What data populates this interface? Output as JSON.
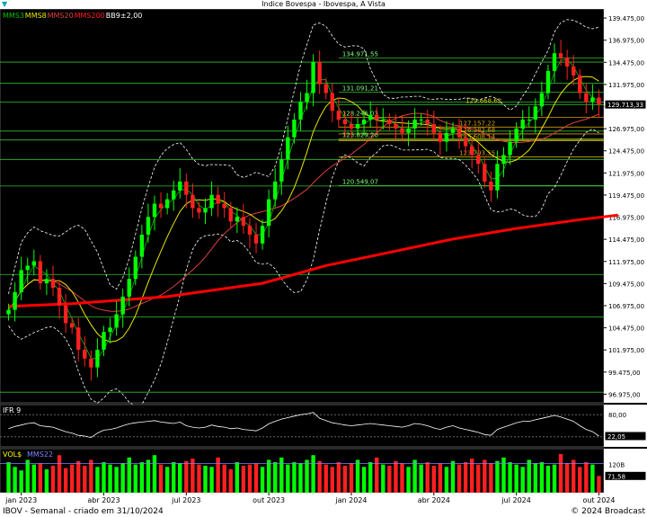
{
  "window": {
    "title": "Indice Bovespa - Ibovespa, A Vista"
  },
  "footer": {
    "left": "IBOV - Semanal - criado em 31/10/2024",
    "right": "© 2024 Broadcast"
  },
  "colors": {
    "up": "#00ff00",
    "down": "#ff2020",
    "mms3": "#00c000",
    "mms8": "#e6e600",
    "mms20": "#e04040",
    "mms200": "#ff0000",
    "bb": "#ffffff",
    "hline": "#30c030",
    "fibo": "#d0a000",
    "grid": "#444444"
  },
  "chart_data": [
    {
      "type": "candlestick",
      "panel": "price",
      "legend": [
        {
          "label": "MMS3",
          "color": "#00c000"
        },
        {
          "label": "MMS8",
          "color": "#e6e600"
        },
        {
          "label": "MMS20",
          "color": "#e04040"
        },
        {
          "label": "MMS200",
          "color": "#ff2020"
        },
        {
          "label": "BB9±2,00",
          "color": "#ffffff"
        }
      ],
      "y_ticks": [
        "139.475,00",
        "136.975,00",
        "134.475,00",
        "131.975,00",
        "129.475,00",
        "126.975,00",
        "124.475,00",
        "121.975,00",
        "119.475,00",
        "116.975,00",
        "114.475,00",
        "111.975,00",
        "109.475,00",
        "106.975,00",
        "104.475,00",
        "101.975,00",
        "99.475,00",
        "96.975,00"
      ],
      "ylim": [
        96000,
        140500
      ],
      "last_value": "129.713,33",
      "x_labels": [
        {
          "label": "jan 2023",
          "index": 2
        },
        {
          "label": "abr 2023",
          "index": 15
        },
        {
          "label": "jul 2023",
          "index": 28
        },
        {
          "label": "out 2023",
          "index": 41
        },
        {
          "label": "jan 2024",
          "index": 54
        },
        {
          "label": "abr 2024",
          "index": 67
        },
        {
          "label": "jul 2024",
          "index": 80
        },
        {
          "label": "out 2024",
          "index": 93
        }
      ],
      "closes": [
        106500,
        108500,
        111000,
        111500,
        112000,
        109500,
        110000,
        109000,
        107000,
        105000,
        104500,
        102000,
        101000,
        100000,
        102000,
        104000,
        104500,
        106000,
        108000,
        110000,
        112500,
        115000,
        117000,
        118500,
        118000,
        119000,
        120000,
        121000,
        119500,
        118000,
        117500,
        118000,
        119500,
        118500,
        118000,
        116500,
        117000,
        116000,
        115000,
        114000,
        116000,
        119000,
        121000,
        123500,
        126000,
        128000,
        130000,
        131000,
        134500,
        132000,
        131000,
        129000,
        128000,
        127500,
        127000,
        127500,
        128000,
        128500,
        128000,
        128000,
        127500,
        127000,
        126500,
        127000,
        128000,
        128000,
        127500,
        126500,
        125500,
        126500,
        127000,
        126000,
        125000,
        124000,
        123000,
        121000,
        120000,
        123000,
        124000,
        125500,
        127000,
        128000,
        128000,
        129500,
        131000,
        133500,
        135500,
        135000,
        134000,
        133000,
        131000,
        130000,
        130500,
        129713
      ],
      "mms200_line": [
        [
          0,
          106900
        ],
        [
          10,
          107200
        ],
        [
          25,
          108000
        ],
        [
          40,
          109500
        ],
        [
          50,
          111500
        ],
        [
          60,
          113000
        ],
        [
          70,
          114500
        ],
        [
          80,
          115700
        ],
        [
          90,
          116700
        ],
        [
          96,
          117200
        ]
      ],
      "levels": [
        {
          "label": "134.971,55",
          "value": 134972
        },
        {
          "label": "131.091,21",
          "value": 131091
        },
        {
          "label": "129.668,62",
          "value": 129669
        },
        {
          "label": "128.246,03",
          "value": 128246
        },
        {
          "label": "127.157,22",
          "value": 127157
        },
        {
          "label": "126.382,68",
          "value": 126383
        },
        {
          "label": "125.608,14",
          "value": 125608
        },
        {
          "label": "125.829,26",
          "value": 125829
        },
        {
          "label": "123.793,55",
          "value": 123794
        },
        {
          "label": "120.549,07",
          "value": 120549
        }
      ]
    },
    {
      "type": "line",
      "panel": "ifr",
      "name": "IFR 9",
      "y_ticks": [
        "80,00"
      ],
      "last_value": "22,05",
      "ylim": [
        0,
        100
      ],
      "values": [
        42,
        48,
        52,
        56,
        58,
        50,
        48,
        46,
        40,
        34,
        30,
        24,
        22,
        18,
        30,
        38,
        40,
        44,
        50,
        55,
        58,
        60,
        62,
        64,
        60,
        58,
        56,
        60,
        50,
        46,
        44,
        46,
        52,
        48,
        46,
        42,
        44,
        40,
        38,
        36,
        44,
        55,
        62,
        68,
        72,
        76,
        80,
        82,
        86,
        70,
        64,
        58,
        55,
        52,
        50,
        52,
        54,
        56,
        54,
        52,
        50,
        48,
        46,
        50,
        56,
        54,
        50,
        44,
        40,
        46,
        50,
        44,
        40,
        36,
        32,
        26,
        24,
        40,
        46,
        52,
        58,
        62,
        62,
        66,
        70,
        74,
        78,
        74,
        68,
        62,
        50,
        40,
        34,
        22
      ]
    },
    {
      "type": "bar",
      "panel": "volume",
      "name": "VOL$",
      "series_label": "MMS22",
      "y_ticks": [
        "120B"
      ],
      "last_value": "71,58",
      "ylim": [
        0,
        180
      ],
      "values": [
        130,
        110,
        95,
        140,
        120,
        125,
        100,
        115,
        160,
        105,
        120,
        135,
        115,
        140,
        110,
        130,
        120,
        110,
        125,
        150,
        120,
        130,
        140,
        160,
        120,
        110,
        130,
        125,
        135,
        145,
        120,
        115,
        110,
        150,
        120,
        100,
        130,
        115,
        120,
        125,
        110,
        140,
        130,
        150,
        120,
        130,
        125,
        140,
        160,
        135,
        120,
        110,
        130,
        115,
        125,
        140,
        110,
        130,
        150,
        120,
        115,
        135,
        125,
        110,
        140,
        120,
        130,
        115,
        125,
        110,
        135,
        120,
        130,
        145,
        120,
        140,
        125,
        135,
        150,
        130,
        120,
        110,
        140,
        125,
        130,
        115,
        120,
        165,
        125,
        140,
        110,
        130,
        120,
        71.58
      ],
      "mms22": 125
    }
  ]
}
